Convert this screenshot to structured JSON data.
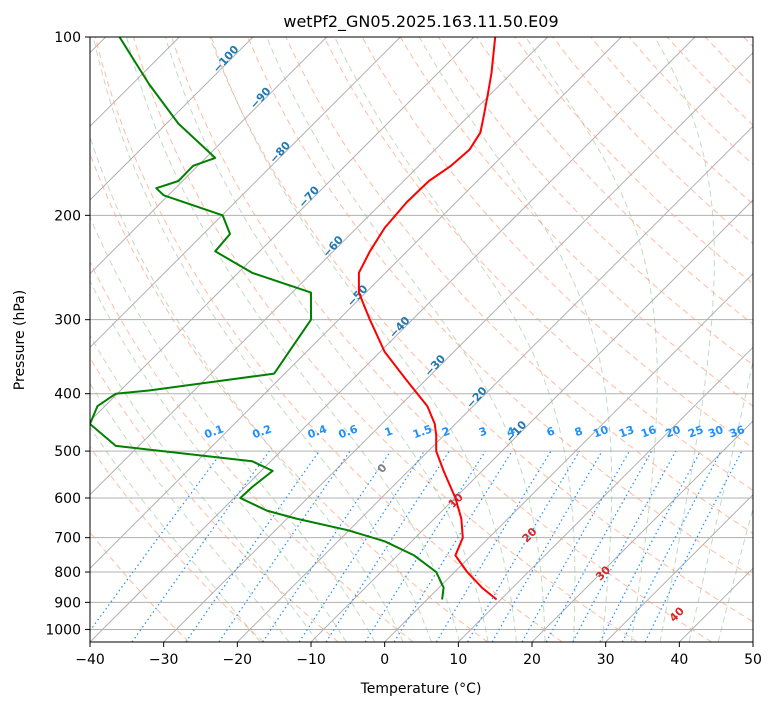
{
  "chart_data": {
    "type": "line",
    "title": "wetPf2_GN05.2025.163.11.50.E09",
    "xlabel": "Temperature (°C)",
    "ylabel": "Pressure (hPa)",
    "xlim": [
      -40,
      50
    ],
    "ylim_hpa": [
      1050,
      100
    ],
    "y_scale": "log",
    "x_ticks": [
      -40,
      -30,
      -20,
      -10,
      0,
      10,
      20,
      30,
      40,
      50
    ],
    "x_tick_labels": [
      "−40",
      "−30",
      "−20",
      "−10",
      "0",
      "10",
      "20",
      "30",
      "40",
      "50"
    ],
    "y_ticks": [
      1000,
      900,
      800,
      700,
      600,
      500,
      400,
      300,
      200,
      100
    ],
    "grid": true,
    "skew": true,
    "series": [
      {
        "color": "#ff0000",
        "points": [
          [
            15.2,
            890
          ],
          [
            13.2,
            850
          ],
          [
            11.2,
            800
          ],
          [
            9.6,
            750
          ],
          [
            10.2,
            720
          ],
          [
            10.6,
            700
          ],
          [
            10.4,
            650
          ],
          [
            9.6,
            600
          ],
          [
            8.0,
            540
          ],
          [
            7.0,
            500
          ],
          [
            7.0,
            470
          ],
          [
            6.8,
            450
          ],
          [
            5.8,
            420
          ],
          [
            3.0,
            380
          ],
          [
            0.0,
            340
          ],
          [
            -2.0,
            300
          ],
          [
            -3.5,
            270
          ],
          [
            -3.5,
            250
          ],
          [
            -2.0,
            230
          ],
          [
            0.0,
            210
          ],
          [
            3.0,
            190
          ],
          [
            6.0,
            175
          ],
          [
            9.0,
            165
          ],
          [
            11.5,
            155
          ],
          [
            13.0,
            145
          ],
          [
            13.5,
            135
          ],
          [
            14.0,
            125
          ],
          [
            14.5,
            115
          ],
          [
            15.0,
            100
          ]
        ]
      },
      {
        "color": "#008000",
        "points": [
          [
            7.8,
            890
          ],
          [
            8.0,
            850
          ],
          [
            7.0,
            800
          ],
          [
            4.0,
            750
          ],
          [
            0.0,
            710
          ],
          [
            -5.0,
            680
          ],
          [
            -12.0,
            650
          ],
          [
            -16.0,
            630
          ],
          [
            -19.6,
            600
          ],
          [
            -18.0,
            575
          ],
          [
            -15.2,
            540
          ],
          [
            -18.0,
            520
          ],
          [
            -36.5,
            490
          ],
          [
            -40.0,
            450
          ],
          [
            -39.0,
            420
          ],
          [
            -36.5,
            400
          ],
          [
            -32.0,
            395
          ],
          [
            -15.0,
            370
          ],
          [
            -13.0,
            340
          ],
          [
            -10.0,
            300
          ],
          [
            -10.0,
            270
          ],
          [
            -18.0,
            250
          ],
          [
            -23.0,
            230
          ],
          [
            -21.0,
            215
          ],
          [
            -22.0,
            200
          ],
          [
            -30.0,
            185
          ],
          [
            -31.0,
            180
          ],
          [
            -28.0,
            175
          ],
          [
            -26.0,
            165
          ],
          [
            -23.0,
            160
          ],
          [
            -28.0,
            140
          ],
          [
            -32.0,
            120
          ],
          [
            -36.0,
            100
          ]
        ]
      }
    ],
    "dry_adiabat_labels": [
      {
        "text": "−100",
        "T": -100,
        "p": 110
      },
      {
        "text": "−90",
        "T": -90,
        "p": 128
      },
      {
        "text": "−80",
        "T": -80,
        "p": 158
      },
      {
        "text": "−70",
        "T": -70,
        "p": 188
      },
      {
        "text": "−60",
        "T": -60,
        "p": 228
      },
      {
        "text": "−50",
        "T": -50,
        "p": 276
      },
      {
        "text": "−40",
        "T": -40,
        "p": 312
      },
      {
        "text": "−30",
        "T": -30,
        "p": 362
      },
      {
        "text": "−20",
        "T": -20,
        "p": 410
      },
      {
        "text": "−10",
        "T": -10,
        "p": 468
      }
    ],
    "mixing_ratio_labels": [
      {
        "text": "0.1",
        "T": -23,
        "p": 470
      },
      {
        "text": "0.2",
        "T": -16.5,
        "p": 470
      },
      {
        "text": "0.4",
        "T": -9,
        "p": 470
      },
      {
        "text": "0.6",
        "T": -4.8,
        "p": 470
      },
      {
        "text": "1",
        "T": 0.7,
        "p": 470
      },
      {
        "text": "1.5",
        "T": 5.3,
        "p": 470
      },
      {
        "text": "2",
        "T": 8.5,
        "p": 470
      },
      {
        "text": "3",
        "T": 13.5,
        "p": 470
      },
      {
        "text": "4",
        "T": 17.3,
        "p": 470
      },
      {
        "text": "6",
        "T": 22.7,
        "p": 470
      },
      {
        "text": "8",
        "T": 26.5,
        "p": 470
      },
      {
        "text": "10",
        "T": 29.5,
        "p": 470
      },
      {
        "text": "13",
        "T": 33.0,
        "p": 470
      },
      {
        "text": "16",
        "T": 36.0,
        "p": 470
      },
      {
        "text": "20",
        "T": 39.3,
        "p": 470
      },
      {
        "text": "25",
        "T": 42.4,
        "p": 470
      },
      {
        "text": "30",
        "T": 45.1,
        "p": 470
      },
      {
        "text": "36",
        "T": 48.0,
        "p": 470
      }
    ],
    "moist_adiabat_labels": [
      {
        "text": "0",
        "T": 0,
        "p": 540,
        "color": "#808080"
      },
      {
        "text": "10",
        "T": 10,
        "p": 612,
        "color": "#d62728"
      },
      {
        "text": "20",
        "T": 20,
        "p": 700,
        "color": "#d62728"
      },
      {
        "text": "30",
        "T": 30,
        "p": 812,
        "color": "#d62728"
      },
      {
        "text": "40",
        "T": 40,
        "p": 953,
        "color": "#d62728"
      }
    ],
    "colors": {
      "temperature": "#ff0000",
      "dewpoint": "#008000",
      "isotherm_grid": "#b0b0b0",
      "dry_adiabat": "#ffa07a",
      "dry_adiabat_label": "#1f77b4",
      "moist_adiabat": "#8fbc8f",
      "mixing_ratio": "#1e90ff",
      "mixing_ratio_label": "#1e90ff",
      "potential_temp_curve": "#d2b48c"
    }
  }
}
